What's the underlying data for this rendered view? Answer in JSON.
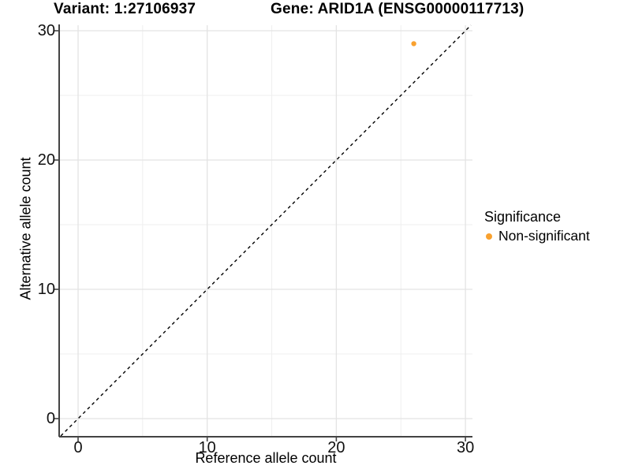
{
  "titles": {
    "variant": "Variant: 1:27106937",
    "gene": "Gene: ARID1A (ENSG00000117713)"
  },
  "axes": {
    "x": {
      "label": "Reference allele count"
    },
    "y": {
      "label": "Alternative allele count"
    }
  },
  "legend": {
    "title": "Significance",
    "items": [
      {
        "label": "Non-significant",
        "color": "#F9A12F"
      }
    ]
  },
  "chart_data": {
    "type": "scatter",
    "title": "Variant: 1:27106937   |   Gene: ARID1A (ENSG00000117713)",
    "xlabel": "Reference allele count",
    "ylabel": "Alternative allele count",
    "xlim": [
      0,
      30
    ],
    "ylim": [
      0,
      30
    ],
    "x_ticks": [
      0,
      10,
      20,
      30
    ],
    "y_ticks": [
      0,
      10,
      20,
      30
    ],
    "x_minor_ticks": [
      5,
      15,
      25
    ],
    "y_minor_ticks": [
      5,
      15,
      25
    ],
    "grid": true,
    "legend_position": "right",
    "series": [
      {
        "name": "Non-significant",
        "color": "#F9A12F",
        "points": [
          {
            "x": 26,
            "y": 29
          }
        ]
      }
    ],
    "reference_line": {
      "type": "identity y=x",
      "style": "dashed",
      "color": "#000000"
    },
    "colors": {
      "axis_line": "#434343",
      "grid_major": "#E3E3E3",
      "grid_minor": "#EFEFEF"
    }
  }
}
